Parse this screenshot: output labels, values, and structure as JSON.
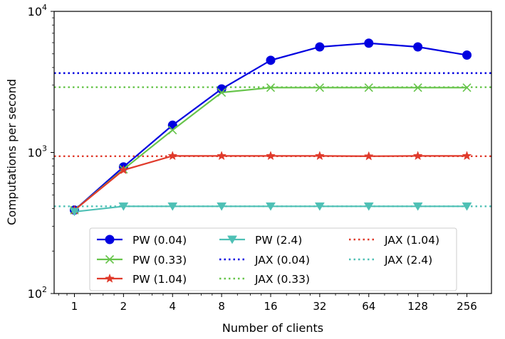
{
  "chart_data": {
    "type": "line",
    "title": "",
    "xlabel": "Number of clients",
    "ylabel": "Computations per second",
    "x": [
      1,
      2,
      4,
      8,
      16,
      32,
      64,
      128,
      256
    ],
    "x_tick_labels": [
      "1",
      "2",
      "4",
      "8",
      "16",
      "32",
      "64",
      "128",
      "256"
    ],
    "xscale": "log2",
    "yscale": "log10",
    "ylim": [
      100,
      10000
    ],
    "y_tick_labels": [
      {
        "base": "10",
        "exp": "2",
        "value": 100
      },
      {
        "base": "10",
        "exp": "3",
        "value": 1000
      },
      {
        "base": "10",
        "exp": "4",
        "value": 10000
      }
    ],
    "grid": false,
    "legend_placement": "lower-center",
    "series": [
      {
        "name": "PW (0.04)",
        "color": "#0000e0",
        "marker": "circle",
        "style": "solid",
        "values": [
          390,
          790,
          1560,
          2820,
          4500,
          5600,
          5950,
          5600,
          4900
        ]
      },
      {
        "name": "PW (0.33)",
        "color": "#66c44a",
        "marker": "x",
        "style": "solid",
        "values": [
          390,
          760,
          1440,
          2660,
          2880,
          2880,
          2880,
          2880,
          2880
        ]
      },
      {
        "name": "PW (1.04)",
        "color": "#e03a2b",
        "marker": "star",
        "style": "solid",
        "values": [
          390,
          750,
          945,
          945,
          945,
          945,
          940,
          945,
          945
        ]
      },
      {
        "name": "PW (2.4)",
        "color": "#4ec0b5",
        "marker": "triangle-down",
        "style": "solid",
        "values": [
          380,
          415,
          415,
          415,
          415,
          415,
          415,
          415,
          415
        ]
      },
      {
        "name": "JAX (0.04)",
        "color": "#0000e0",
        "style": "dotted",
        "constant": 3650
      },
      {
        "name": "JAX (0.33)",
        "color": "#66c44a",
        "style": "dotted",
        "constant": 2900
      },
      {
        "name": "JAX (1.04)",
        "color": "#e03a2b",
        "style": "dotted",
        "constant": 940
      },
      {
        "name": "JAX (2.4)",
        "color": "#4ec0b5",
        "style": "dotted",
        "constant": 415
      }
    ]
  }
}
